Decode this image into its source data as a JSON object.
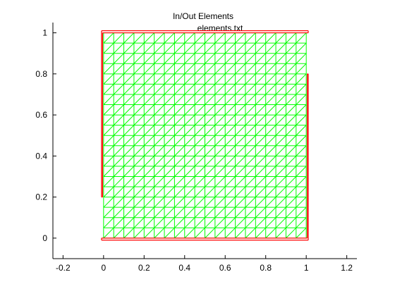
{
  "chart_data": {
    "type": "mesh",
    "title": "In/Out Elements",
    "subtitle": "elements.txt",
    "xlim": [
      -0.25,
      1.25
    ],
    "ylim": [
      -0.1,
      1.05
    ],
    "xticks": [
      -0.2,
      0,
      0.2,
      0.4,
      0.6,
      0.8,
      1,
      1.2
    ],
    "xtick_labels": [
      "-0.2",
      "0",
      "0.2",
      "0.4",
      "0.6",
      "0.8",
      "1",
      "1.2"
    ],
    "yticks": [
      0,
      0.2,
      0.4,
      0.6,
      0.8,
      1
    ],
    "ytick_labels": [
      "0",
      "0.2",
      "0.4",
      "0.6",
      "0.8",
      "1"
    ],
    "grid": false,
    "mesh": {
      "x_range": [
        0,
        1
      ],
      "y_range": [
        0,
        1
      ],
      "divisions": 20,
      "diagonal": "forward",
      "color": "#00ff00"
    },
    "boundary": {
      "color": "#ff0000",
      "segments": [
        [
          [
            -0.01,
            0.2
          ],
          [
            -0.01,
            1.01
          ]
        ],
        [
          [
            -0.01,
            1.01
          ],
          [
            1.01,
            1.01
          ]
        ],
        [
          [
            1.01,
            1.01
          ],
          [
            1.01,
            1.0
          ]
        ],
        [
          [
            1.01,
            1.0
          ],
          [
            -0.005,
            1.0
          ]
        ],
        [
          [
            -0.005,
            1.0
          ],
          [
            -0.005,
            0.2
          ]
        ],
        [
          [
            -0.005,
            0.2
          ],
          [
            -0.01,
            0.2
          ]
        ],
        [
          [
            -0.01,
            -0.01
          ],
          [
            1.01,
            -0.01
          ]
        ],
        [
          [
            1.01,
            -0.01
          ],
          [
            1.01,
            0.8
          ]
        ],
        [
          [
            1.01,
            0.8
          ],
          [
            1.005,
            0.8
          ]
        ],
        [
          [
            1.005,
            0.8
          ],
          [
            1.005,
            0.0
          ]
        ],
        [
          [
            1.005,
            0.0
          ],
          [
            -0.01,
            0.0
          ]
        ],
        [
          [
            -0.01,
            0.0
          ],
          [
            -0.01,
            -0.01
          ]
        ]
      ]
    }
  }
}
